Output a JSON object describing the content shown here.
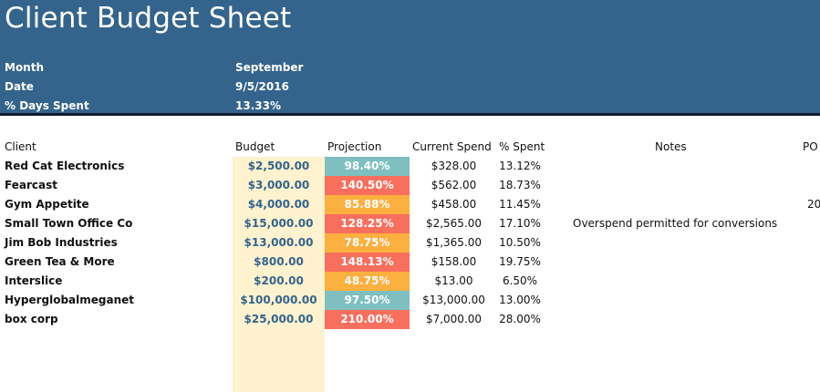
{
  "title": "Client Budget Sheet",
  "meta": [
    {
      "label": "Month",
      "value": "September"
    },
    {
      "label": "Date",
      "value": "9/5/2016"
    },
    {
      "label": "% Days Spent",
      "value": "13.33%"
    }
  ],
  "columns": {
    "client": "Client",
    "budget": "Budget",
    "projection": "Projection",
    "current_spend": "Current Spend",
    "pct_spent": "% Spent",
    "notes": "Notes",
    "po": "PO"
  },
  "colors": {
    "header_bg": "#34648c",
    "budget_bg": "#fff2cf",
    "projection_teal": "#7fbfc0",
    "projection_red": "#f96f5d",
    "projection_orange": "#fbb040"
  },
  "rows": [
    {
      "client": "Red Cat Electronics",
      "budget": "$2,500.00",
      "projection": "98.40%",
      "projection_status": "teal",
      "current_spend": "$328.00",
      "pct_spent": "13.12%",
      "notes": "",
      "po": ""
    },
    {
      "client": "Fearcast",
      "budget": "$3,000.00",
      "projection": "140.50%",
      "projection_status": "red",
      "current_spend": "$562.00",
      "pct_spent": "18.73%",
      "notes": "",
      "po": ""
    },
    {
      "client": "Gym Appetite",
      "budget": "$4,000.00",
      "projection": "85.88%",
      "projection_status": "orange",
      "current_spend": "$458.00",
      "pct_spent": "11.45%",
      "notes": "",
      "po": "20"
    },
    {
      "client": "Small Town Office Co",
      "budget": "$15,000.00",
      "projection": "128.25%",
      "projection_status": "red",
      "current_spend": "$2,565.00",
      "pct_spent": "17.10%",
      "notes": "Overspend permitted for conversions",
      "po": ""
    },
    {
      "client": "Jim Bob Industries",
      "budget": "$13,000.00",
      "projection": "78.75%",
      "projection_status": "orange",
      "current_spend": "$1,365.00",
      "pct_spent": "10.50%",
      "notes": "",
      "po": ""
    },
    {
      "client": "Green Tea & More",
      "budget": "$800.00",
      "projection": "148.13%",
      "projection_status": "red",
      "current_spend": "$158.00",
      "pct_spent": "19.75%",
      "notes": "",
      "po": ""
    },
    {
      "client": "Interslice",
      "budget": "$200.00",
      "projection": "48.75%",
      "projection_status": "orange",
      "current_spend": "$13.00",
      "pct_spent": "6.50%",
      "notes": "",
      "po": ""
    },
    {
      "client": "Hyperglobalmeganet",
      "budget": "$100,000.00",
      "projection": "97.50%",
      "projection_status": "teal",
      "current_spend": "$13,000.00",
      "pct_spent": "13.00%",
      "notes": "",
      "po": ""
    },
    {
      "client": "box corp",
      "budget": "$25,000.00",
      "projection": "210.00%",
      "projection_status": "red",
      "current_spend": "$7,000.00",
      "pct_spent": "28.00%",
      "notes": "",
      "po": ""
    }
  ]
}
